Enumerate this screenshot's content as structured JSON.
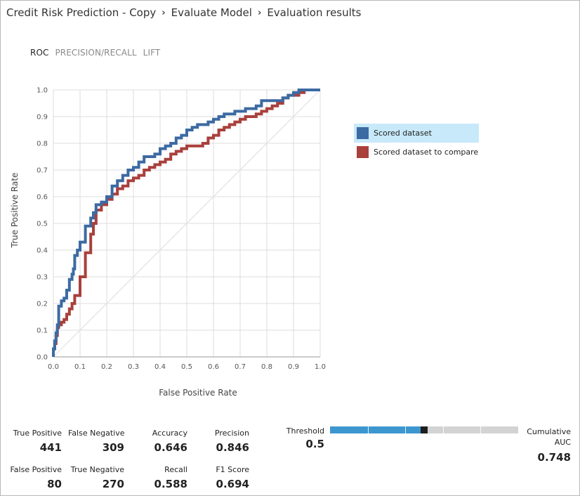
{
  "breadcrumb": {
    "items": [
      "Credit Risk Prediction - Copy",
      "Evaluate Model",
      "Evaluation results"
    ],
    "separator": "›"
  },
  "tabs": [
    {
      "label": "ROC",
      "active": true
    },
    {
      "label": "PRECISION/RECALL",
      "active": false
    },
    {
      "label": "LIFT",
      "active": false
    }
  ],
  "chart_data": {
    "type": "line",
    "title": "",
    "xlabel": "False Positive Rate",
    "ylabel": "True Positive Rate",
    "xlim": [
      0,
      1
    ],
    "ylim": [
      0,
      1
    ],
    "x_ticks": [
      "0.0",
      "0.1",
      "0.2",
      "0.3",
      "0.4",
      "0.5",
      "0.6",
      "0.7",
      "0.8",
      "0.9",
      "1.0"
    ],
    "y_ticks": [
      "0.0",
      "0.1",
      "0.2",
      "0.3",
      "0.4",
      "0.5",
      "0.6",
      "0.7",
      "0.8",
      "0.9",
      "1.0"
    ],
    "grid": true,
    "diagonal_reference": true,
    "legend_position": "right",
    "series": [
      {
        "name": "Scored dataset",
        "color": "#3c6aa2",
        "x": [
          0,
          0.005,
          0.01,
          0.015,
          0.02,
          0.03,
          0.04,
          0.05,
          0.06,
          0.07,
          0.075,
          0.08,
          0.09,
          0.1,
          0.12,
          0.14,
          0.15,
          0.16,
          0.18,
          0.2,
          0.22,
          0.24,
          0.26,
          0.28,
          0.3,
          0.32,
          0.34,
          0.36,
          0.38,
          0.4,
          0.42,
          0.44,
          0.46,
          0.48,
          0.5,
          0.52,
          0.54,
          0.56,
          0.58,
          0.6,
          0.62,
          0.64,
          0.66,
          0.68,
          0.7,
          0.72,
          0.74,
          0.76,
          0.78,
          0.8,
          0.82,
          0.84,
          0.86,
          0.88,
          0.9,
          0.92,
          0.94,
          0.96,
          0.98,
          1.0
        ],
        "y": [
          0,
          0.03,
          0.06,
          0.09,
          0.12,
          0.19,
          0.21,
          0.22,
          0.25,
          0.29,
          0.31,
          0.33,
          0.38,
          0.4,
          0.43,
          0.49,
          0.52,
          0.54,
          0.57,
          0.58,
          0.6,
          0.64,
          0.66,
          0.68,
          0.7,
          0.71,
          0.73,
          0.75,
          0.75,
          0.76,
          0.78,
          0.79,
          0.8,
          0.82,
          0.83,
          0.85,
          0.86,
          0.87,
          0.87,
          0.88,
          0.89,
          0.9,
          0.91,
          0.91,
          0.92,
          0.92,
          0.93,
          0.93,
          0.94,
          0.96,
          0.96,
          0.96,
          0.96,
          0.97,
          0.98,
          0.99,
          1.0,
          1.0,
          1.0,
          1.0
        ]
      },
      {
        "name": "Scored dataset to compare",
        "color": "#a9403c",
        "x": [
          0,
          0.005,
          0.01,
          0.015,
          0.02,
          0.03,
          0.04,
          0.05,
          0.06,
          0.07,
          0.08,
          0.1,
          0.12,
          0.14,
          0.15,
          0.16,
          0.18,
          0.2,
          0.22,
          0.24,
          0.26,
          0.28,
          0.3,
          0.32,
          0.34,
          0.36,
          0.38,
          0.4,
          0.42,
          0.44,
          0.46,
          0.48,
          0.5,
          0.52,
          0.54,
          0.56,
          0.58,
          0.6,
          0.62,
          0.64,
          0.66,
          0.68,
          0.7,
          0.72,
          0.74,
          0.76,
          0.78,
          0.8,
          0.82,
          0.84,
          0.86,
          0.88,
          0.9,
          0.92,
          0.94,
          0.96,
          0.98,
          1.0
        ],
        "y": [
          0,
          0.03,
          0.05,
          0.08,
          0.11,
          0.12,
          0.13,
          0.14,
          0.16,
          0.18,
          0.2,
          0.23,
          0.3,
          0.39,
          0.46,
          0.5,
          0.55,
          0.57,
          0.59,
          0.61,
          0.63,
          0.64,
          0.66,
          0.67,
          0.68,
          0.7,
          0.71,
          0.72,
          0.73,
          0.74,
          0.76,
          0.77,
          0.78,
          0.79,
          0.79,
          0.79,
          0.8,
          0.82,
          0.83,
          0.85,
          0.86,
          0.87,
          0.88,
          0.89,
          0.9,
          0.9,
          0.91,
          0.92,
          0.93,
          0.94,
          0.95,
          0.97,
          0.98,
          0.98,
          0.99,
          1.0,
          1.0,
          1.0
        ]
      }
    ]
  },
  "legend": {
    "items": [
      {
        "label": "Scored dataset",
        "color": "#3c6aa2",
        "selected": true
      },
      {
        "label": "Scored dataset to compare",
        "color": "#a9403c",
        "selected": false
      }
    ]
  },
  "metrics": {
    "true_positive": {
      "label": "True Positive",
      "value": "441"
    },
    "false_negative": {
      "label": "False Negative",
      "value": "309"
    },
    "accuracy": {
      "label": "Accuracy",
      "value": "0.646"
    },
    "precision": {
      "label": "Precision",
      "value": "0.846"
    },
    "false_positive": {
      "label": "False Positive",
      "value": "80"
    },
    "true_negative": {
      "label": "True Negative",
      "value": "270"
    },
    "recall": {
      "label": "Recall",
      "value": "0.588"
    },
    "f1_score": {
      "label": "F1 Score",
      "value": "0.694"
    }
  },
  "threshold": {
    "label": "Threshold",
    "value": "0.5",
    "level": 0.5
  },
  "auc": {
    "label_line1": "Cumulative",
    "label_line2": "AUC",
    "value": "0.748"
  },
  "colors": {
    "accent": "#3d97cf",
    "selection": "#c7e9f9",
    "slider_track": "#d3d3d3"
  }
}
